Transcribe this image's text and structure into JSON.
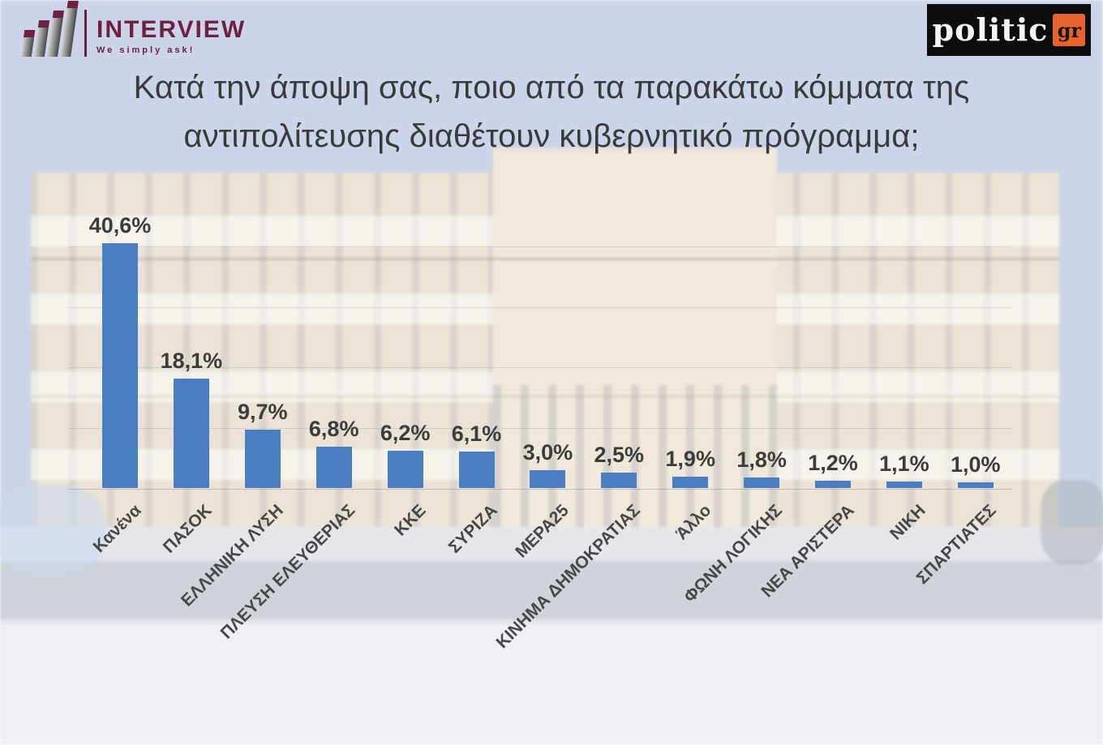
{
  "header": {
    "interview_logo": {
      "name": "INTERVIEW",
      "tagline": "We simply ask!",
      "brand_color": "#6e2040"
    },
    "politic_logo": {
      "text": "politic",
      "badge": "gr",
      "badge_color": "#e8632c"
    }
  },
  "title": {
    "line1": "Κατά την άποψη σας, ποιο από τα παρακάτω κόμματα της",
    "line2": "αντιπολίτευσης διαθέτουν κυβερνητικό πρόγραμμα;"
  },
  "chart_data": {
    "type": "bar",
    "title": "Κατά την άποψη σας, ποιο από τα παρακάτω κόμματα της αντιπολίτευσης διαθέτουν κυβερνητικό πρόγραμμα;",
    "categories": [
      "Κανένα",
      "ΠΑΣΟΚ",
      "ΕΛΛΗΝΙΚΗ ΛΥΣΗ",
      "ΠΛΕΥΣΗ ΕΛΕΥΘΕΡΙΑΣ",
      "ΚΚΕ",
      "ΣΥΡΙΖΑ",
      "ΜΕΡΑ25",
      "ΚΙΝΗΜΑ ΔΗΜΟΚΡΑΤΙΑΣ",
      "Άλλο",
      "ΦΩΝΗ ΛΟΓΙΚΗΣ",
      "ΝΕΑ ΑΡΙΣΤΕΡΑ",
      "ΝΙΚΗ",
      "ΣΠΑΡΤΙΑΤΕΣ"
    ],
    "values": [
      40.6,
      18.1,
      9.7,
      6.8,
      6.2,
      6.1,
      3.0,
      2.5,
      1.9,
      1.8,
      1.2,
      1.1,
      1.0
    ],
    "value_labels": [
      "40,6%",
      "18,1%",
      "9,7%",
      "6,8%",
      "6,2%",
      "6,1%",
      "3,0%",
      "2,5%",
      "1,9%",
      "1,8%",
      "1,2%",
      "1,1%",
      "1,0%"
    ],
    "bar_color": "#4b7ec0",
    "xlabel": "",
    "ylabel": "",
    "ylim": [
      0,
      45
    ],
    "grid": true,
    "gridline_interval_pct": 10,
    "legend_position": "none",
    "category_label_rotation_deg": -45
  }
}
